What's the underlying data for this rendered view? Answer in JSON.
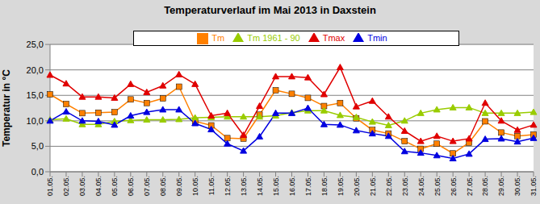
{
  "chart_data": {
    "type": "line",
    "title": "Temperaturverlauf im Mai 2013 in Daxstein",
    "y_label": "Temperatur in °C",
    "categories": [
      "01.05.",
      "02.05.",
      "03.05.",
      "04.05.",
      "05.05.",
      "06.05.",
      "07.05.",
      "08.05.",
      "09.05.",
      "10.05.",
      "11.05.",
      "12.05.",
      "13.05.",
      "14.05.",
      "15.05.",
      "16.05.",
      "17.05.",
      "18.05.",
      "19.05.",
      "20.05.",
      "21.05.",
      "22.05.",
      "23.05.",
      "24.05.",
      "25.05.",
      "26.05.",
      "27.05.",
      "28.05.",
      "29.05.",
      "30.05.",
      "31.05."
    ],
    "series": [
      {
        "name": "Tm",
        "color": "#ff8000",
        "marker": "square",
        "values": [
          15.2,
          13.3,
          11.5,
          11.6,
          11.7,
          14.2,
          13.5,
          14.4,
          16.7,
          9.9,
          9.1,
          6.6,
          6.5,
          11.2,
          16.0,
          15.3,
          14.5,
          12.9,
          13.5,
          10.5,
          8.2,
          7.5,
          6.0,
          4.5,
          5.5,
          3.6,
          5.7,
          9.9,
          7.7,
          7.0,
          7.3
        ]
      },
      {
        "name": "Tm 1961 - 90",
        "color": "#99cc00",
        "marker": "triangle",
        "values": [
          10.2,
          10.4,
          9.3,
          9.3,
          9.9,
          10.1,
          10.2,
          10.2,
          10.3,
          10.6,
          10.7,
          10.8,
          10.8,
          10.8,
          11.0,
          11.6,
          12.0,
          12.0,
          11.1,
          10.7,
          9.8,
          9.1,
          10.0,
          11.5,
          12.2,
          12.6,
          12.6,
          11.5,
          11.5,
          11.5,
          11.7
        ]
      },
      {
        "name": "Tmax",
        "color": "#e00000",
        "marker": "triangle",
        "values": [
          19.0,
          17.3,
          14.7,
          14.7,
          14.5,
          17.2,
          15.6,
          16.9,
          19.1,
          17.2,
          11.0,
          11.5,
          7.2,
          12.9,
          18.7,
          18.7,
          18.5,
          15.2,
          20.5,
          12.8,
          13.9,
          10.8,
          8.0,
          6.0,
          7.0,
          6.0,
          6.5,
          13.5,
          10.0,
          8.2,
          9.2
        ]
      },
      {
        "name": "Tmin",
        "color": "#0000e0",
        "marker": "triangle",
        "values": [
          10.0,
          11.8,
          10.0,
          9.9,
          9.2,
          11.0,
          11.7,
          12.2,
          12.2,
          9.5,
          8.3,
          5.5,
          4.1,
          6.9,
          11.5,
          11.5,
          12.5,
          9.3,
          9.2,
          8.1,
          7.5,
          7.0,
          4.0,
          3.7,
          3.2,
          2.6,
          3.5,
          6.4,
          6.5,
          5.9,
          6.6
        ]
      }
    ],
    "ylim": [
      0,
      25
    ],
    "yticks": [
      {
        "value": 0,
        "label": "0,0"
      },
      {
        "value": 5,
        "label": "5,0"
      },
      {
        "value": 10,
        "label": "10,0"
      },
      {
        "value": 15,
        "label": "15,0"
      },
      {
        "value": 20,
        "label": "20,0"
      },
      {
        "value": 25,
        "label": "25,0"
      }
    ],
    "grid": true,
    "legend": "top"
  }
}
